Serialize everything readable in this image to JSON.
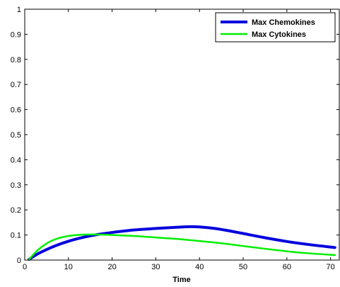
{
  "chart_data": {
    "type": "line",
    "title": "",
    "xlabel": "Time",
    "ylabel": "",
    "xlim": [
      0,
      72
    ],
    "ylim": [
      0,
      1
    ],
    "xticks": [
      0,
      10,
      20,
      30,
      40,
      50,
      60,
      70
    ],
    "yticks": [
      0,
      0.1,
      0.2,
      0.3,
      0.4,
      0.5,
      0.6,
      0.7,
      0.8,
      0.9,
      1
    ],
    "x_tick_labels": [
      "0",
      "10",
      "20",
      "30",
      "40",
      "50",
      "60",
      "70"
    ],
    "y_tick_labels": [
      "0",
      "0.1",
      "0.2",
      "0.3",
      "0.4",
      "0.5",
      "0.6",
      "0.7",
      "0.8",
      "0.9",
      "1"
    ],
    "grid": false,
    "legend_position": "top-right",
    "series": [
      {
        "name": "Max Chemokines",
        "color": "#0000dd",
        "x": [
          1,
          3,
          5,
          7,
          10,
          13,
          16,
          20,
          25,
          30,
          35,
          38,
          40,
          43,
          46,
          50,
          55,
          60,
          65,
          71
        ],
        "y": [
          0.003,
          0.025,
          0.042,
          0.057,
          0.075,
          0.089,
          0.1,
          0.11,
          0.12,
          0.126,
          0.131,
          0.133,
          0.132,
          0.127,
          0.119,
          0.106,
          0.089,
          0.074,
          0.062,
          0.05
        ]
      },
      {
        "name": "Max Cytokines",
        "color": "#00ee00",
        "x": [
          1,
          3,
          5,
          7,
          10,
          13,
          16,
          20,
          25,
          30,
          35,
          40,
          45,
          50,
          55,
          60,
          65,
          71
        ],
        "y": [
          0.003,
          0.04,
          0.066,
          0.083,
          0.096,
          0.101,
          0.102,
          0.1,
          0.096,
          0.09,
          0.084,
          0.076,
          0.067,
          0.056,
          0.045,
          0.035,
          0.027,
          0.02
        ]
      }
    ]
  }
}
